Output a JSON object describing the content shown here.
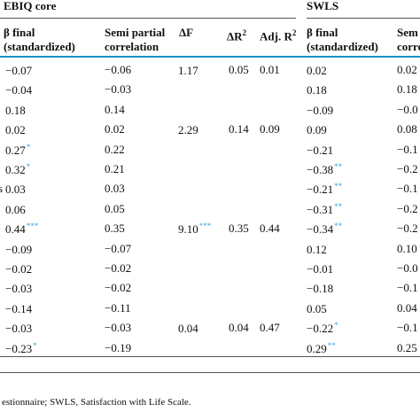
{
  "table": {
    "groups": [
      {
        "label": "EBIQ core"
      },
      {
        "label": "SWLS"
      }
    ],
    "headers": [
      {
        "line1": "β final",
        "line2": "(standardized)"
      },
      {
        "line1": "Semi partial",
        "line2": "correlation"
      },
      {
        "line1": "ΔF",
        "line2": ""
      },
      {
        "line1": "ΔR",
        "sup": "2",
        "line2": ""
      },
      {
        "line1": "Adj. R",
        "sup": "2",
        "line2": ""
      },
      {
        "line1": "β final",
        "line2": "(standardized)"
      },
      {
        "line1": "Sem",
        "line2": "corre"
      }
    ],
    "row_label_fragment": "s",
    "rows": [
      {
        "b1": "−0.07",
        "b1s": "",
        "sp1": "−0.06",
        "df": "1.17",
        "dfs": "",
        "dr": "0.05",
        "adj": "0.01",
        "b2": "0.02",
        "b2s": "",
        "sp2": "0.02"
      },
      {
        "b1": "−0.04",
        "b1s": "",
        "sp1": "−0.03",
        "df": "",
        "dfs": "",
        "dr": "",
        "adj": "",
        "b2": "0.18",
        "b2s": "",
        "sp2": "0.18"
      },
      {
        "b1": "0.18",
        "b1s": "",
        "sp1": "0.14",
        "df": "",
        "dfs": "",
        "dr": "",
        "adj": "",
        "b2": "−0.09",
        "b2s": "",
        "sp2": "−0.0"
      },
      {
        "b1": "0.02",
        "b1s": "",
        "sp1": "0.02",
        "df": "2.29",
        "dfs": "",
        "dr": "0.14",
        "adj": "0.09",
        "b2": "0.09",
        "b2s": "",
        "sp2": "0.08"
      },
      {
        "b1": "0.27",
        "b1s": "*",
        "sp1": "0.22",
        "df": "",
        "dfs": "",
        "dr": "",
        "adj": "",
        "b2": "−0.21",
        "b2s": "",
        "sp2": "−0.1"
      },
      {
        "b1": "0.32",
        "b1s": "*",
        "sp1": "0.21",
        "df": "",
        "dfs": "",
        "dr": "",
        "adj": "",
        "b2": "−0.38",
        "b2s": "**",
        "sp2": "−0.2"
      },
      {
        "b1": "0.03",
        "b1s": "",
        "sp1": "0.03",
        "df": "",
        "dfs": "",
        "dr": "",
        "adj": "",
        "b2": "−0.21",
        "b2s": "**",
        "sp2": "−0.1"
      },
      {
        "b1": "0.06",
        "b1s": "",
        "sp1": "0.05",
        "df": "",
        "dfs": "",
        "dr": "",
        "adj": "",
        "b2": "−0.31",
        "b2s": "**",
        "sp2": "−0.2"
      },
      {
        "b1": "0.44",
        "b1s": "***",
        "sp1": "0.35",
        "df": "9.10",
        "dfs": "***",
        "dr": "0.35",
        "adj": "0.44",
        "b2": "−0.34",
        "b2s": "**",
        "sp2": "−0.2"
      },
      {
        "b1": "−0.09",
        "b1s": "",
        "sp1": "−0.07",
        "df": "",
        "dfs": "",
        "dr": "",
        "adj": "",
        "b2": "0.12",
        "b2s": "",
        "sp2": "0.10"
      },
      {
        "b1": "−0.02",
        "b1s": "",
        "sp1": "−0.02",
        "df": "",
        "dfs": "",
        "dr": "",
        "adj": "",
        "b2": "−0.01",
        "b2s": "",
        "sp2": "−0.0"
      },
      {
        "b1": "−0.03",
        "b1s": "",
        "sp1": "−0.02",
        "df": "",
        "dfs": "",
        "dr": "",
        "adj": "",
        "b2": "−0.18",
        "b2s": "",
        "sp2": "−0.1"
      },
      {
        "b1": "−0.14",
        "b1s": "",
        "sp1": "−0.11",
        "df": "",
        "dfs": "",
        "dr": "",
        "adj": "",
        "b2": "0.05",
        "b2s": "",
        "sp2": "0.04"
      },
      {
        "b1": "−0.03",
        "b1s": "",
        "sp1": "−0.03",
        "df": "0.04",
        "dfs": "",
        "dr": "0.04",
        "adj": "0.47",
        "b2": "−0.22",
        "b2s": "*",
        "sp2": "−0.1"
      },
      {
        "b1": "−0.23",
        "b1s": "*",
        "sp1": "−0.19",
        "df": "",
        "dfs": "",
        "dr": "",
        "adj": "",
        "b2": "0.29",
        "b2s": "**",
        "sp2": "0.25"
      }
    ],
    "footnote": "estionnaire; SWLS, Satisfaction with Life Scale."
  }
}
